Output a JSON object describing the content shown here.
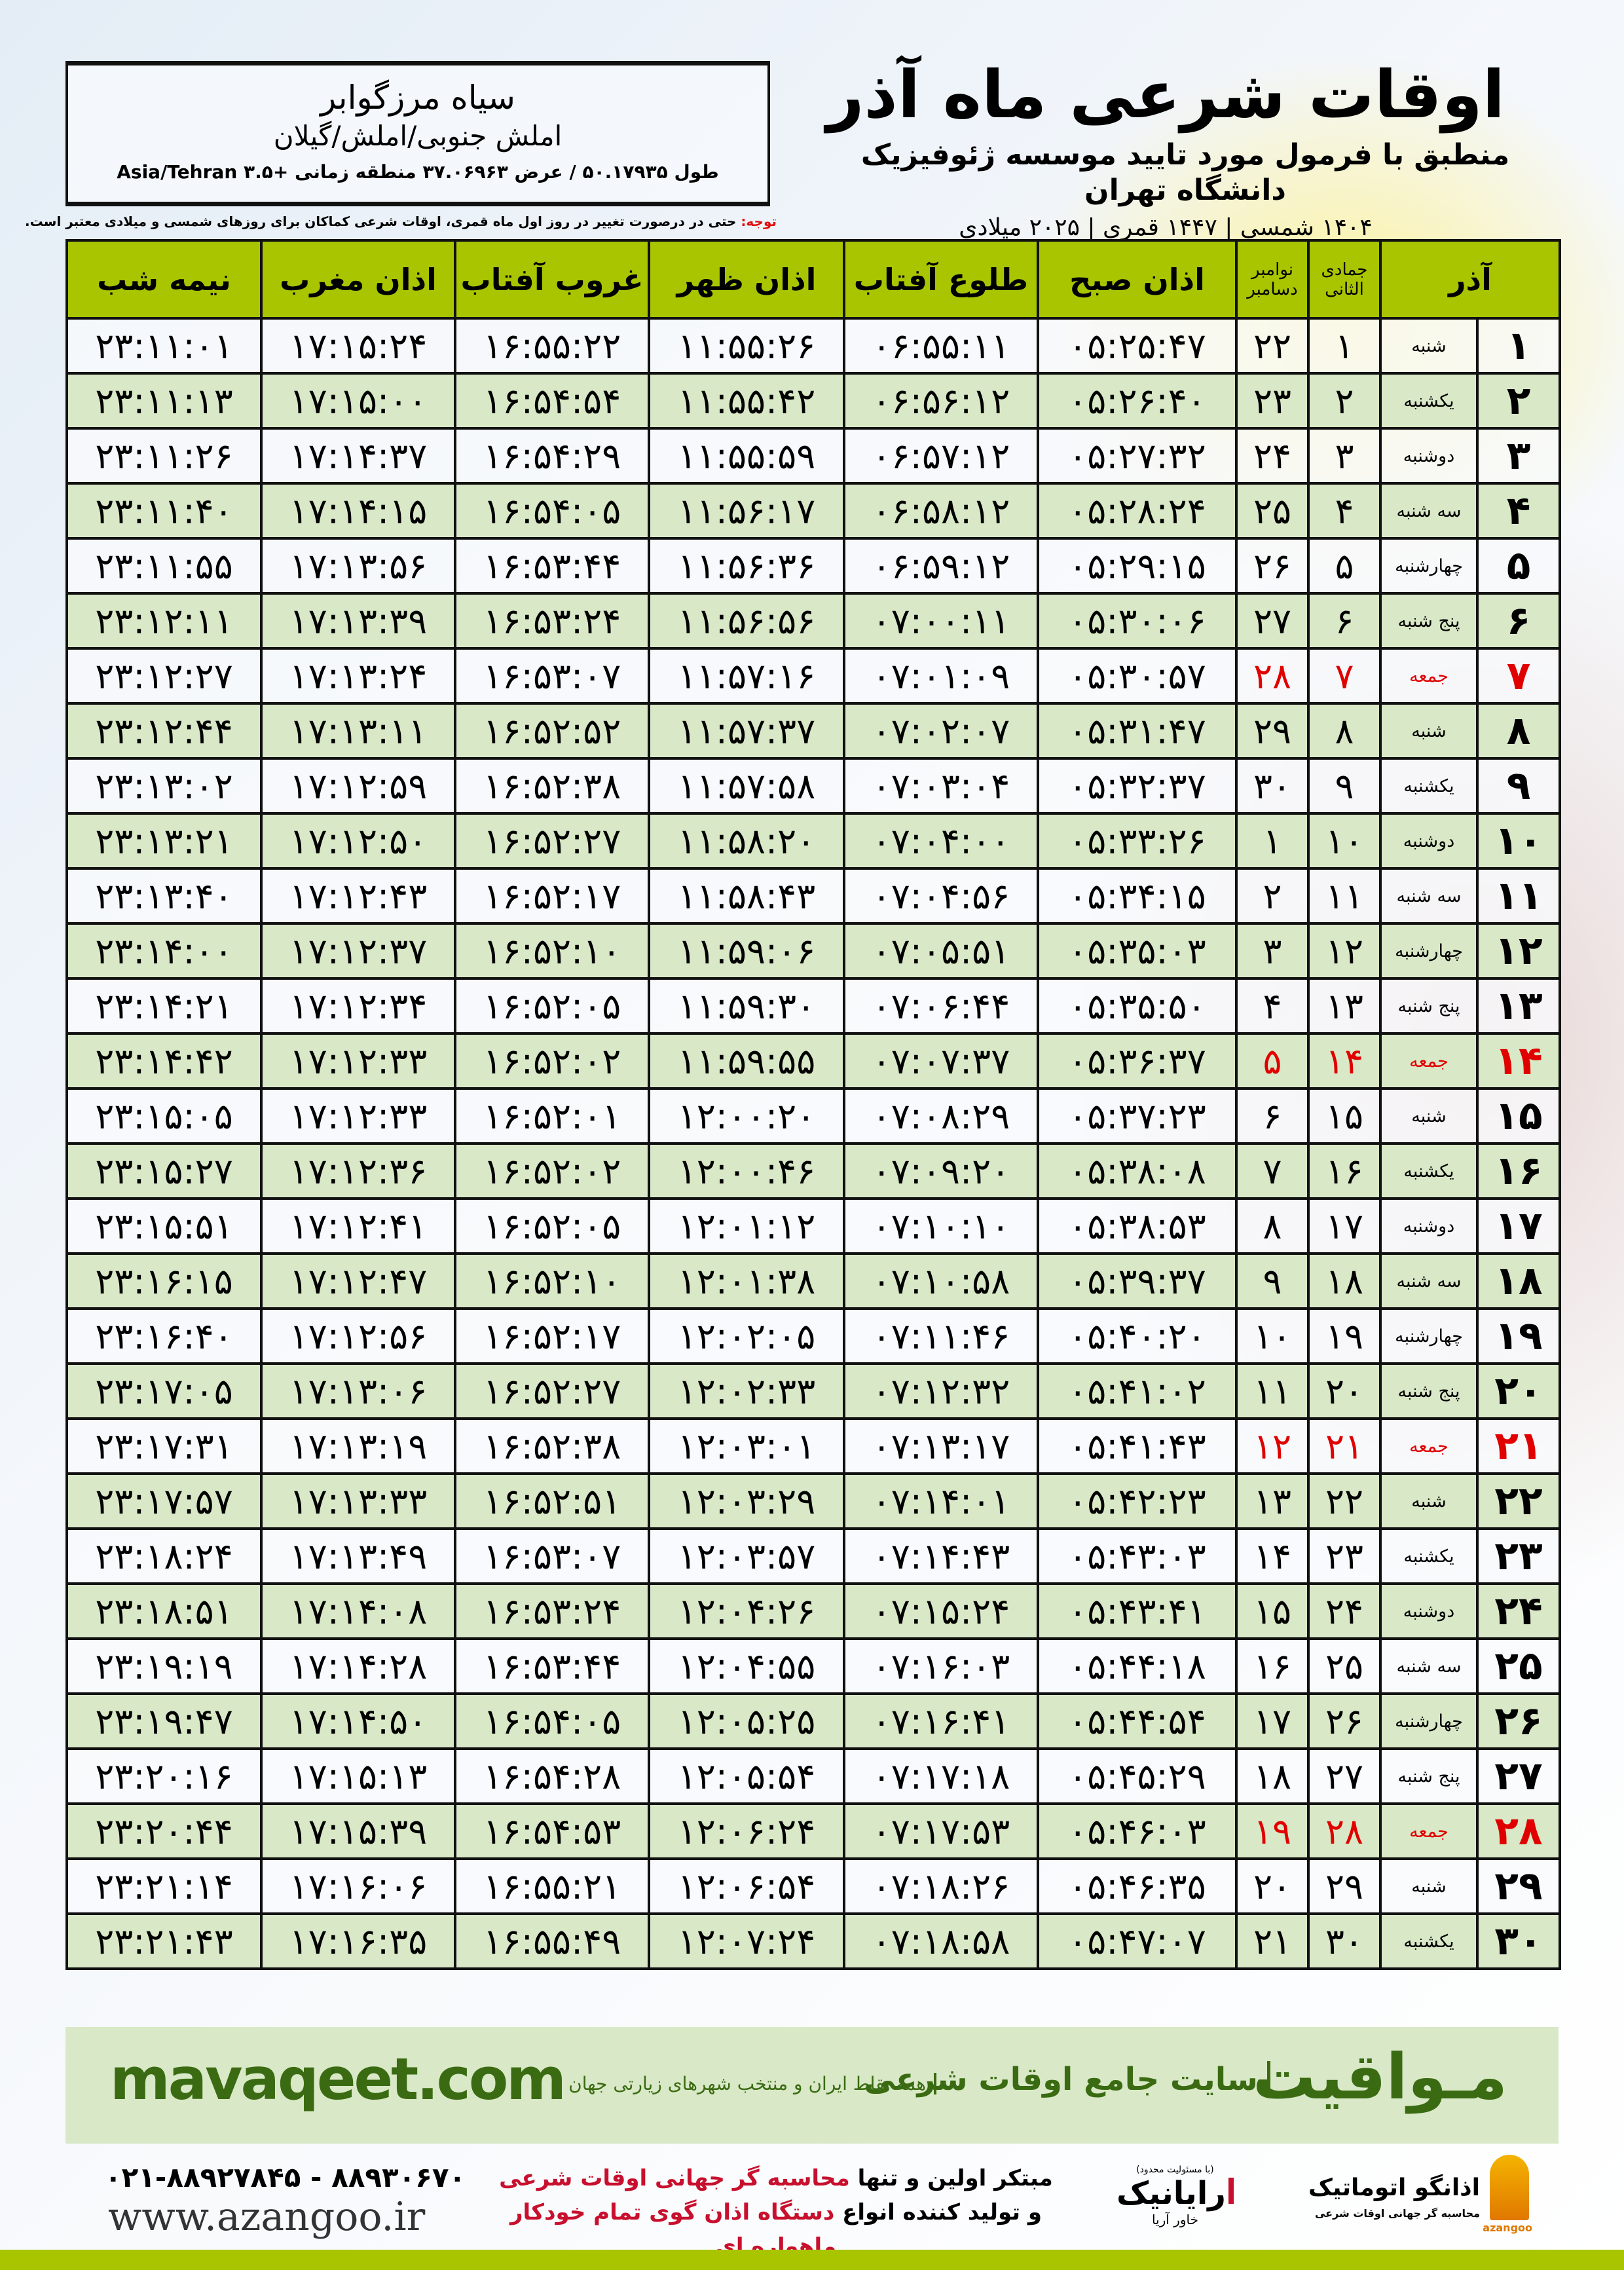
{
  "location": {
    "name": "سیاه مرزگوابر",
    "region": "املش جنوبی/املش/گیلان",
    "coords": "طول ۵۰.۱۷۹۳۵ / عرض ۳۷.۰۶۹۶۳ منطقه زمانی +۳.۵ Asia/Tehran"
  },
  "header": {
    "title": "اوقات شرعی ماه آذر",
    "subtitle": "منطبق با فرمول مورد تایید موسسه ژئوفیزیک دانشگاه تهران",
    "years": "۱۴۰۴ شمسی | ۱۴۴۷ قمری | ۲۰۲۵ میلادی"
  },
  "note": {
    "label": "توجه:",
    "text": " حتی در درصورت تغییر در روز اول ماه قمری، اوقات شرعی کماکان برای روزهای شمسی و میلادی معتبر است."
  },
  "colors": {
    "header_green": "#a8c500",
    "row_green": "#d9e8c6",
    "friday_red": "#e00000",
    "brand_green": "#3a6b12"
  },
  "columns": {
    "month": "آذر",
    "hijri": "جمادی الثانی",
    "greg1": "نوامبر",
    "greg2": "دسامبر",
    "fajr": "اذان صبح",
    "sunrise": "طلوع آفتاب",
    "dhuhr": "اذان ظهر",
    "sunset": "غروب آفتاب",
    "maghrib": "اذان مغرب",
    "midnight": "نیمه شب"
  },
  "rows": [
    {
      "day": "۱",
      "wd": "شنبه",
      "h": "۱",
      "g": "۲۲",
      "t": [
        "۰۵:۲۵:۴۷",
        "۰۶:۵۵:۱۱",
        "۱۱:۵۵:۲۶",
        "۱۶:۵۵:۲۲",
        "۱۷:۱۵:۲۴",
        "۲۳:۱۱:۰۱"
      ]
    },
    {
      "day": "۲",
      "wd": "یکشنبه",
      "h": "۲",
      "g": "۲۳",
      "t": [
        "۰۵:۲۶:۴۰",
        "۰۶:۵۶:۱۲",
        "۱۱:۵۵:۴۲",
        "۱۶:۵۴:۵۴",
        "۱۷:۱۵:۰۰",
        "۲۳:۱۱:۱۳"
      ]
    },
    {
      "day": "۳",
      "wd": "دوشنبه",
      "h": "۳",
      "g": "۲۴",
      "t": [
        "۰۵:۲۷:۳۲",
        "۰۶:۵۷:۱۲",
        "۱۱:۵۵:۵۹",
        "۱۶:۵۴:۲۹",
        "۱۷:۱۴:۳۷",
        "۲۳:۱۱:۲۶"
      ]
    },
    {
      "day": "۴",
      "wd": "سه شنبه",
      "h": "۴",
      "g": "۲۵",
      "t": [
        "۰۵:۲۸:۲۴",
        "۰۶:۵۸:۱۲",
        "۱۱:۵۶:۱۷",
        "۱۶:۵۴:۰۵",
        "۱۷:۱۴:۱۵",
        "۲۳:۱۱:۴۰"
      ]
    },
    {
      "day": "۵",
      "wd": "چهارشنبه",
      "h": "۵",
      "g": "۲۶",
      "t": [
        "۰۵:۲۹:۱۵",
        "۰۶:۵۹:۱۲",
        "۱۱:۵۶:۳۶",
        "۱۶:۵۳:۴۴",
        "۱۷:۱۳:۵۶",
        "۲۳:۱۱:۵۵"
      ]
    },
    {
      "day": "۶",
      "wd": "پنج شنبه",
      "h": "۶",
      "g": "۲۷",
      "t": [
        "۰۵:۳۰:۰۶",
        "۰۷:۰۰:۱۱",
        "۱۱:۵۶:۵۶",
        "۱۶:۵۳:۲۴",
        "۱۷:۱۳:۳۹",
        "۲۳:۱۲:۱۱"
      ]
    },
    {
      "day": "۷",
      "wd": "جمعه",
      "h": "۷",
      "g": "۲۸",
      "fri": true,
      "t": [
        "۰۵:۳۰:۵۷",
        "۰۷:۰۱:۰۹",
        "۱۱:۵۷:۱۶",
        "۱۶:۵۳:۰۷",
        "۱۷:۱۳:۲۴",
        "۲۳:۱۲:۲۷"
      ]
    },
    {
      "day": "۸",
      "wd": "شنبه",
      "h": "۸",
      "g": "۲۹",
      "t": [
        "۰۵:۳۱:۴۷",
        "۰۷:۰۲:۰۷",
        "۱۱:۵۷:۳۷",
        "۱۶:۵۲:۵۲",
        "۱۷:۱۳:۱۱",
        "۲۳:۱۲:۴۴"
      ]
    },
    {
      "day": "۹",
      "wd": "یکشنبه",
      "h": "۹",
      "g": "۳۰",
      "t": [
        "۰۵:۳۲:۳۷",
        "۰۷:۰۳:۰۴",
        "۱۱:۵۷:۵۸",
        "۱۶:۵۲:۳۸",
        "۱۷:۱۲:۵۹",
        "۲۳:۱۳:۰۲"
      ]
    },
    {
      "day": "۱۰",
      "wd": "دوشنبه",
      "h": "۱۰",
      "g": "۱",
      "t": [
        "۰۵:۳۳:۲۶",
        "۰۷:۰۴:۰۰",
        "۱۱:۵۸:۲۰",
        "۱۶:۵۲:۲۷",
        "۱۷:۱۲:۵۰",
        "۲۳:۱۳:۲۱"
      ]
    },
    {
      "day": "۱۱",
      "wd": "سه شنبه",
      "h": "۱۱",
      "g": "۲",
      "t": [
        "۰۵:۳۴:۱۵",
        "۰۷:۰۴:۵۶",
        "۱۱:۵۸:۴۳",
        "۱۶:۵۲:۱۷",
        "۱۷:۱۲:۴۳",
        "۲۳:۱۳:۴۰"
      ]
    },
    {
      "day": "۱۲",
      "wd": "چهارشنبه",
      "h": "۱۲",
      "g": "۳",
      "t": [
        "۰۵:۳۵:۰۳",
        "۰۷:۰۵:۵۱",
        "۱۱:۵۹:۰۶",
        "۱۶:۵۲:۱۰",
        "۱۷:۱۲:۳۷",
        "۲۳:۱۴:۰۰"
      ]
    },
    {
      "day": "۱۳",
      "wd": "پنج شنبه",
      "h": "۱۳",
      "g": "۴",
      "t": [
        "۰۵:۳۵:۵۰",
        "۰۷:۰۶:۴۴",
        "۱۱:۵۹:۳۰",
        "۱۶:۵۲:۰۵",
        "۱۷:۱۲:۳۴",
        "۲۳:۱۴:۲۱"
      ]
    },
    {
      "day": "۱۴",
      "wd": "جمعه",
      "h": "۱۴",
      "g": "۵",
      "fri": true,
      "t": [
        "۰۵:۳۶:۳۷",
        "۰۷:۰۷:۳۷",
        "۱۱:۵۹:۵۵",
        "۱۶:۵۲:۰۲",
        "۱۷:۱۲:۳۳",
        "۲۳:۱۴:۴۲"
      ]
    },
    {
      "day": "۱۵",
      "wd": "شنبه",
      "h": "۱۵",
      "g": "۶",
      "t": [
        "۰۵:۳۷:۲۳",
        "۰۷:۰۸:۲۹",
        "۱۲:۰۰:۲۰",
        "۱۶:۵۲:۰۱",
        "۱۷:۱۲:۳۳",
        "۲۳:۱۵:۰۵"
      ]
    },
    {
      "day": "۱۶",
      "wd": "یکشنبه",
      "h": "۱۶",
      "g": "۷",
      "t": [
        "۰۵:۳۸:۰۸",
        "۰۷:۰۹:۲۰",
        "۱۲:۰۰:۴۶",
        "۱۶:۵۲:۰۲",
        "۱۷:۱۲:۳۶",
        "۲۳:۱۵:۲۷"
      ]
    },
    {
      "day": "۱۷",
      "wd": "دوشنبه",
      "h": "۱۷",
      "g": "۸",
      "t": [
        "۰۵:۳۸:۵۳",
        "۰۷:۱۰:۱۰",
        "۱۲:۰۱:۱۲",
        "۱۶:۵۲:۰۵",
        "۱۷:۱۲:۴۱",
        "۲۳:۱۵:۵۱"
      ]
    },
    {
      "day": "۱۸",
      "wd": "سه شنبه",
      "h": "۱۸",
      "g": "۹",
      "t": [
        "۰۵:۳۹:۳۷",
        "۰۷:۱۰:۵۸",
        "۱۲:۰۱:۳۸",
        "۱۶:۵۲:۱۰",
        "۱۷:۱۲:۴۷",
        "۲۳:۱۶:۱۵"
      ]
    },
    {
      "day": "۱۹",
      "wd": "چهارشنبه",
      "h": "۱۹",
      "g": "۱۰",
      "t": [
        "۰۵:۴۰:۲۰",
        "۰۷:۱۱:۴۶",
        "۱۲:۰۲:۰۵",
        "۱۶:۵۲:۱۷",
        "۱۷:۱۲:۵۶",
        "۲۳:۱۶:۴۰"
      ]
    },
    {
      "day": "۲۰",
      "wd": "پنج شنبه",
      "h": "۲۰",
      "g": "۱۱",
      "t": [
        "۰۵:۴۱:۰۲",
        "۰۷:۱۲:۳۲",
        "۱۲:۰۲:۳۳",
        "۱۶:۵۲:۲۷",
        "۱۷:۱۳:۰۶",
        "۲۳:۱۷:۰۵"
      ]
    },
    {
      "day": "۲۱",
      "wd": "جمعه",
      "h": "۲۱",
      "g": "۱۲",
      "fri": true,
      "t": [
        "۰۵:۴۱:۴۳",
        "۰۷:۱۳:۱۷",
        "۱۲:۰۳:۰۱",
        "۱۶:۵۲:۳۸",
        "۱۷:۱۳:۱۹",
        "۲۳:۱۷:۳۱"
      ]
    },
    {
      "day": "۲۲",
      "wd": "شنبه",
      "h": "۲۲",
      "g": "۱۳",
      "t": [
        "۰۵:۴۲:۲۳",
        "۰۷:۱۴:۰۱",
        "۱۲:۰۳:۲۹",
        "۱۶:۵۲:۵۱",
        "۱۷:۱۳:۳۳",
        "۲۳:۱۷:۵۷"
      ]
    },
    {
      "day": "۲۳",
      "wd": "یکشنبه",
      "h": "۲۳",
      "g": "۱۴",
      "t": [
        "۰۵:۴۳:۰۳",
        "۰۷:۱۴:۴۳",
        "۱۲:۰۳:۵۷",
        "۱۶:۵۳:۰۷",
        "۱۷:۱۳:۴۹",
        "۲۳:۱۸:۲۴"
      ]
    },
    {
      "day": "۲۴",
      "wd": "دوشنبه",
      "h": "۲۴",
      "g": "۱۵",
      "t": [
        "۰۵:۴۳:۴۱",
        "۰۷:۱۵:۲۴",
        "۱۲:۰۴:۲۶",
        "۱۶:۵۳:۲۴",
        "۱۷:۱۴:۰۸",
        "۲۳:۱۸:۵۱"
      ]
    },
    {
      "day": "۲۵",
      "wd": "سه شنبه",
      "h": "۲۵",
      "g": "۱۶",
      "t": [
        "۰۵:۴۴:۱۸",
        "۰۷:۱۶:۰۳",
        "۱۲:۰۴:۵۵",
        "۱۶:۵۳:۴۴",
        "۱۷:۱۴:۲۸",
        "۲۳:۱۹:۱۹"
      ]
    },
    {
      "day": "۲۶",
      "wd": "چهارشنبه",
      "h": "۲۶",
      "g": "۱۷",
      "t": [
        "۰۵:۴۴:۵۴",
        "۰۷:۱۶:۴۱",
        "۱۲:۰۵:۲۵",
        "۱۶:۵۴:۰۵",
        "۱۷:۱۴:۵۰",
        "۲۳:۱۹:۴۷"
      ]
    },
    {
      "day": "۲۷",
      "wd": "پنج شنبه",
      "h": "۲۷",
      "g": "۱۸",
      "t": [
        "۰۵:۴۵:۲۹",
        "۰۷:۱۷:۱۸",
        "۱۲:۰۵:۵۴",
        "۱۶:۵۴:۲۸",
        "۱۷:۱۵:۱۳",
        "۲۳:۲۰:۱۶"
      ]
    },
    {
      "day": "۲۸",
      "wd": "جمعه",
      "h": "۲۸",
      "g": "۱۹",
      "fri": true,
      "t": [
        "۰۵:۴۶:۰۳",
        "۰۷:۱۷:۵۳",
        "۱۲:۰۶:۲۴",
        "۱۶:۵۴:۵۳",
        "۱۷:۱۵:۳۹",
        "۲۳:۲۰:۴۴"
      ]
    },
    {
      "day": "۲۹",
      "wd": "شنبه",
      "h": "۲۹",
      "g": "۲۰",
      "t": [
        "۰۵:۴۶:۳۵",
        "۰۷:۱۸:۲۶",
        "۱۲:۰۶:۵۴",
        "۱۶:۵۵:۲۱",
        "۱۷:۱۶:۰۶",
        "۲۳:۲۱:۱۴"
      ]
    },
    {
      "day": "۳۰",
      "wd": "یکشنبه",
      "h": "۳۰",
      "g": "۲۱",
      "t": [
        "۰۵:۴۷:۰۷",
        "۰۷:۱۸:۵۸",
        "۱۲:۰۷:۲۴",
        "۱۶:۵۵:۴۹",
        "۱۷:۱۶:۳۵",
        "۲۳:۲۱:۴۳"
      ]
    }
  ],
  "banner": {
    "brand": "مـواقیت",
    "slogan": "سایت جامع اوقات شرعی",
    "slogan2": "همه نقاط ایران و منتخب شهرهای زیارتی جهان",
    "site": "mavaqeet.com"
  },
  "footer": {
    "phone": "۰۲۱-۸۸۹۲۷۸۴۵ - ۸۸۹۳۰۶۷۰",
    "www": "www.azangoo.ir",
    "p1": "مبتکر اولین و تنها ",
    "p1r": "محاسبه گر جهانی اوقات شرعی",
    "p2": "و تولید کننده انواع ",
    "p2r": "دستگاه اذان گوی تمام خودکار ماهواره ای",
    "rayanik_note": "(با مسئولیت محدود)",
    "rayanik": "رایانیک",
    "rayanik_sub": "خاور آریا",
    "azangoo": "اذانگو اتوماتیک",
    "azangoo_sub": "محاسبه گر جهانی اوقات شرعی",
    "azangoo_en": "azangoo"
  }
}
